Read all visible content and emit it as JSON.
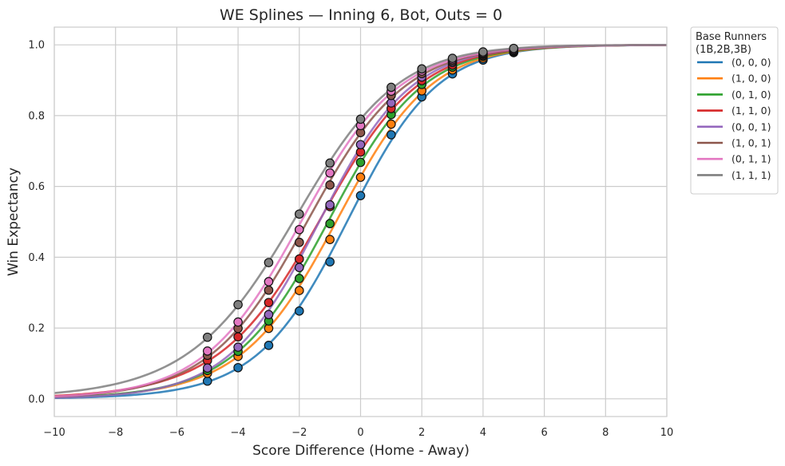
{
  "chart_data": {
    "type": "line",
    "title": "WE Splines — Inning 6, Bot, Outs = 0",
    "xlabel": "Score Difference (Home - Away)",
    "ylabel": "Win Expectancy",
    "xlim": [
      -10,
      10
    ],
    "ylim": [
      -0.05,
      1.05
    ],
    "xticks": [
      -10,
      -8,
      -6,
      -4,
      -2,
      0,
      2,
      4,
      6,
      8,
      10
    ],
    "xtick_labels": [
      "−10",
      "−8",
      "−6",
      "−4",
      "−2",
      "0",
      "2",
      "4",
      "6",
      "8",
      "10"
    ],
    "yticks": [
      0.0,
      0.2,
      0.4,
      0.6,
      0.8,
      1.0
    ],
    "ytick_labels": [
      "0.0",
      "0.2",
      "0.4",
      "0.6",
      "0.8",
      "1.0"
    ],
    "grid": true,
    "legend": {
      "title_line1": "Base Runners",
      "title_line2": "(1B,2B,3B)",
      "placement": "outside-top-right"
    },
    "x": [
      -5,
      -4,
      -3,
      -2,
      -1,
      0,
      1,
      2,
      3,
      4,
      5
    ],
    "series": [
      {
        "name": "(0, 0, 0)",
        "color": "#1f77b4",
        "values": [
          0.05,
          0.088,
          0.151,
          0.248,
          0.387,
          0.574,
          0.746,
          0.853,
          0.918,
          0.957,
          0.978
        ]
      },
      {
        "name": "(1, 0, 0)",
        "color": "#ff7f0e",
        "values": [
          0.072,
          0.12,
          0.199,
          0.306,
          0.45,
          0.626,
          0.776,
          0.87,
          0.929,
          0.962,
          0.98
        ]
      },
      {
        "name": "(0, 1, 0)",
        "color": "#2ca02c",
        "values": [
          0.08,
          0.134,
          0.22,
          0.34,
          0.495,
          0.668,
          0.803,
          0.888,
          0.937,
          0.967,
          0.982
        ]
      },
      {
        "name": "(1, 1, 0)",
        "color": "#d62728",
        "values": [
          0.108,
          0.175,
          0.272,
          0.395,
          0.543,
          0.697,
          0.82,
          0.899,
          0.943,
          0.97,
          0.984
        ]
      },
      {
        "name": "(0, 0, 1)",
        "color": "#9467bd",
        "values": [
          0.087,
          0.146,
          0.238,
          0.371,
          0.548,
          0.718,
          0.836,
          0.909,
          0.95,
          0.973,
          0.985
        ]
      },
      {
        "name": "(1, 0, 1)",
        "color": "#8c564b",
        "values": [
          0.123,
          0.199,
          0.307,
          0.442,
          0.604,
          0.752,
          0.857,
          0.919,
          0.954,
          0.975,
          0.986
        ]
      },
      {
        "name": "(0, 1, 1)",
        "color": "#e377c2",
        "values": [
          0.135,
          0.217,
          0.331,
          0.478,
          0.638,
          0.772,
          0.869,
          0.926,
          0.958,
          0.977,
          0.987
        ]
      },
      {
        "name": "(1, 1, 1)",
        "color": "#7f7f7f",
        "values": [
          0.174,
          0.266,
          0.385,
          0.522,
          0.666,
          0.79,
          0.88,
          0.932,
          0.962,
          0.98,
          0.99
        ]
      }
    ]
  }
}
